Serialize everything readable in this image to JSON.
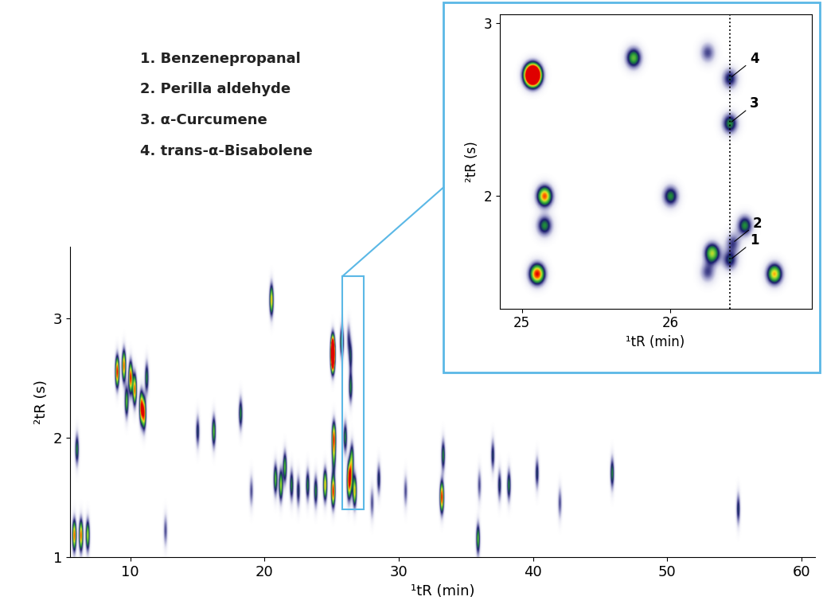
{
  "chart_data": {
    "type": "contour",
    "x_label": "¹tR (min)",
    "y_label": "²tR (s)",
    "xlim": [
      5.5,
      61
    ],
    "ylim": [
      1,
      3.6
    ],
    "xticks": [
      10,
      20,
      30,
      40,
      50,
      60
    ],
    "yticks": [
      1,
      2,
      3
    ],
    "color_range": [
      0,
      1
    ],
    "zoom_region": {
      "x": [
        25.8,
        27.4
      ],
      "y": [
        1.4,
        3.35
      ]
    },
    "compound_list": [
      "1. Benzenepropanal",
      "2. Perilla aldehyde",
      "3. α-Curcumene",
      "4. trans-α-Bisabolene"
    ],
    "peaks": [
      {
        "x": 5.8,
        "y": 1.18,
        "intensity": 0.9
      },
      {
        "x": 6.3,
        "y": 1.18,
        "intensity": 0.9
      },
      {
        "x": 6.8,
        "y": 1.18,
        "intensity": 0.7
      },
      {
        "x": 6.0,
        "y": 1.9,
        "intensity": 0.5
      },
      {
        "x": 9.0,
        "y": 2.55,
        "intensity": 1.0
      },
      {
        "x": 9.5,
        "y": 2.6,
        "intensity": 0.9
      },
      {
        "x": 9.7,
        "y": 2.3,
        "intensity": 0.6
      },
      {
        "x": 10.0,
        "y": 2.5,
        "intensity": 1.0
      },
      {
        "x": 10.3,
        "y": 2.4,
        "intensity": 0.9
      },
      {
        "x": 10.8,
        "y": 2.25,
        "intensity": 1.0
      },
      {
        "x": 11.0,
        "y": 2.2,
        "intensity": 0.9
      },
      {
        "x": 11.2,
        "y": 2.5,
        "intensity": 0.5
      },
      {
        "x": 12.6,
        "y": 1.22,
        "intensity": 0.3
      },
      {
        "x": 15.0,
        "y": 2.05,
        "intensity": 0.4
      },
      {
        "x": 16.2,
        "y": 2.05,
        "intensity": 0.6
      },
      {
        "x": 18.2,
        "y": 2.2,
        "intensity": 0.5
      },
      {
        "x": 19.0,
        "y": 1.55,
        "intensity": 0.3
      },
      {
        "x": 20.5,
        "y": 3.15,
        "intensity": 0.8
      },
      {
        "x": 20.8,
        "y": 1.65,
        "intensity": 0.6
      },
      {
        "x": 21.2,
        "y": 1.6,
        "intensity": 0.7
      },
      {
        "x": 21.5,
        "y": 1.75,
        "intensity": 0.6
      },
      {
        "x": 22.0,
        "y": 1.6,
        "intensity": 0.5
      },
      {
        "x": 22.5,
        "y": 1.55,
        "intensity": 0.4
      },
      {
        "x": 23.2,
        "y": 1.6,
        "intensity": 0.5
      },
      {
        "x": 23.8,
        "y": 1.55,
        "intensity": 0.5
      },
      {
        "x": 24.5,
        "y": 1.6,
        "intensity": 0.8
      },
      {
        "x": 25.07,
        "y": 2.7,
        "intensity": 2.5
      },
      {
        "x": 25.15,
        "y": 2.0,
        "intensity": 0.9
      },
      {
        "x": 25.15,
        "y": 1.83,
        "intensity": 0.5
      },
      {
        "x": 25.1,
        "y": 1.55,
        "intensity": 1.0
      },
      {
        "x": 25.75,
        "y": 2.8,
        "intensity": 0.6
      },
      {
        "x": 26.0,
        "y": 2.0,
        "intensity": 0.5
      },
      {
        "x": 26.25,
        "y": 2.83,
        "intensity": 0.3
      },
      {
        "x": 26.28,
        "y": 1.67,
        "intensity": 0.7
      },
      {
        "x": 26.25,
        "y": 1.56,
        "intensity": 0.3
      },
      {
        "x": 26.4,
        "y": 2.68,
        "intensity": 0.4
      },
      {
        "x": 26.4,
        "y": 2.42,
        "intensity": 0.5
      },
      {
        "x": 26.42,
        "y": 1.73,
        "intensity": 0.3
      },
      {
        "x": 26.4,
        "y": 1.63,
        "intensity": 0.4
      },
      {
        "x": 26.5,
        "y": 1.83,
        "intensity": 0.5
      },
      {
        "x": 26.7,
        "y": 1.55,
        "intensity": 0.8
      },
      {
        "x": 28.0,
        "y": 1.45,
        "intensity": 0.3
      },
      {
        "x": 28.5,
        "y": 1.65,
        "intensity": 0.4
      },
      {
        "x": 30.5,
        "y": 1.55,
        "intensity": 0.3
      },
      {
        "x": 33.2,
        "y": 1.5,
        "intensity": 1.0
      },
      {
        "x": 33.3,
        "y": 1.85,
        "intensity": 0.5
      },
      {
        "x": 35.9,
        "y": 1.15,
        "intensity": 0.6
      },
      {
        "x": 36.0,
        "y": 1.6,
        "intensity": 0.3
      },
      {
        "x": 37.0,
        "y": 1.85,
        "intensity": 0.4
      },
      {
        "x": 37.5,
        "y": 1.6,
        "intensity": 0.4
      },
      {
        "x": 38.2,
        "y": 1.6,
        "intensity": 0.5
      },
      {
        "x": 40.3,
        "y": 1.7,
        "intensity": 0.4
      },
      {
        "x": 42.0,
        "y": 1.45,
        "intensity": 0.3
      },
      {
        "x": 45.9,
        "y": 1.7,
        "intensity": 0.5
      },
      {
        "x": 55.3,
        "y": 1.4,
        "intensity": 0.4
      }
    ],
    "inset": {
      "xlim": [
        24.85,
        26.95
      ],
      "ylim": [
        1.35,
        3.05
      ],
      "xticks": [
        25,
        26
      ],
      "yticks": [
        2,
        3
      ],
      "marker_line": 26.4,
      "labeled_peaks": [
        {
          "number": 1,
          "x": 26.4,
          "y": 1.63
        },
        {
          "number": 2,
          "x": 26.42,
          "y": 1.73
        },
        {
          "number": 3,
          "x": 26.4,
          "y": 2.42
        },
        {
          "number": 4,
          "x": 26.4,
          "y": 2.68
        }
      ]
    }
  }
}
